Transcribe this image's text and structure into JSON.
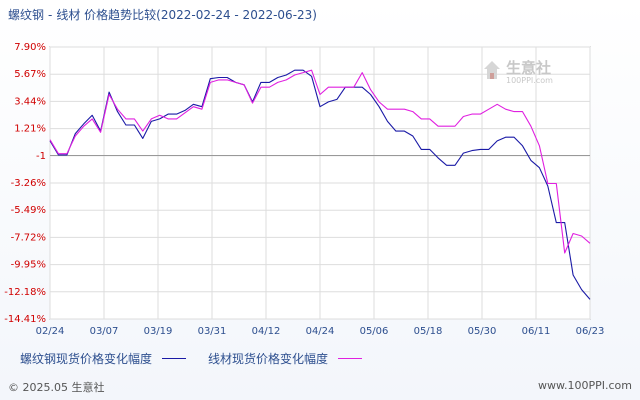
{
  "header": {
    "title_left": "螺纹钢",
    "title_sep": "-",
    "title_right": "线材  价格趋势比较(2022-02-24 - 2022-06-23)"
  },
  "legend": {
    "series1": "螺纹钢现货价格变化幅度",
    "series2": "线材现货价格变化幅度"
  },
  "footer": {
    "copyright": "© 2025.05 生意社",
    "url": "www.100PPI.com"
  },
  "watermark": {
    "name": "生意社",
    "url": "100PPI.com"
  },
  "colors": {
    "series1": "#1a1aa6",
    "series2": "#e020e0",
    "zero_line": "#999999",
    "grid": "#dddddd",
    "axis": "#888888",
    "ytick": "#d00000",
    "xtick": "#2d4f8f"
  },
  "chart_data": {
    "type": "line",
    "title": "螺纹钢 - 线材  价格趋势比较(2022-02-24 - 2022-06-23)",
    "xlabel": "",
    "ylabel": "",
    "ylim": [
      -14.41,
      7.9
    ],
    "yticks": [
      7.9,
      5.67,
      3.44,
      1.21,
      -1.02,
      -3.26,
      -5.49,
      -7.72,
      -9.95,
      -12.18,
      -14.41
    ],
    "ytick_labels": [
      "7.90%",
      "5.67%",
      "3.44%",
      "1.21%",
      "-1",
      "-3.26%",
      "-5.49%",
      "-7.72%",
      "-9.95%",
      "-12.18%",
      "-14.41%"
    ],
    "xticks": [
      "02/24",
      "03/07",
      "03/19",
      "03/31",
      "04/12",
      "04/24",
      "05/06",
      "05/18",
      "05/30",
      "06/11",
      "06/23"
    ],
    "zero_line": -1,
    "grid": true,
    "legend_position": "bottom",
    "x": [
      "02/24",
      "02/25",
      "02/27",
      "03/01",
      "03/03",
      "03/04",
      "03/05",
      "03/07",
      "03/08",
      "03/10",
      "03/12",
      "03/14",
      "03/16",
      "03/19",
      "03/21",
      "03/23",
      "03/25",
      "03/27",
      "03/29",
      "03/31",
      "04/02",
      "04/04",
      "04/06",
      "04/08",
      "04/10",
      "04/12",
      "04/14",
      "04/16",
      "04/18",
      "04/20",
      "04/22",
      "04/24",
      "04/26",
      "04/28",
      "04/30",
      "05/02",
      "05/04",
      "05/06",
      "05/08",
      "05/10",
      "05/12",
      "05/14",
      "05/16",
      "05/18",
      "05/20",
      "05/22",
      "05/24",
      "05/26",
      "05/28",
      "05/30",
      "06/01",
      "06/03",
      "06/05",
      "06/07",
      "06/09",
      "06/11",
      "06/13",
      "06/15",
      "06/16",
      "06/17",
      "06/18",
      "06/19",
      "06/20",
      "06/21",
      "06/23"
    ],
    "series": [
      {
        "name": "螺纹钢现货价格变化幅度",
        "values": [
          0.2,
          -0.95,
          -0.95,
          0.8,
          1.6,
          2.3,
          1.0,
          4.2,
          2.6,
          1.5,
          1.5,
          0.4,
          1.8,
          2.0,
          2.4,
          2.4,
          2.7,
          3.2,
          3.0,
          5.3,
          5.4,
          5.4,
          5.0,
          4.8,
          3.4,
          5.0,
          5.0,
          5.4,
          5.6,
          6.0,
          6.0,
          5.5,
          3.0,
          3.4,
          3.6,
          4.6,
          4.6,
          4.6,
          4.0,
          3.0,
          1.8,
          1.0,
          1.0,
          0.6,
          -0.5,
          -0.5,
          -1.2,
          -1.8,
          -1.8,
          -0.8,
          -0.6,
          -0.5,
          -0.5,
          0.2,
          0.5,
          0.5,
          -0.2,
          -1.4,
          -2.0,
          -3.5,
          -6.5,
          -6.5,
          -10.8,
          -12.0,
          -12.8
        ]
      },
      {
        "name": "线材现货价格变化幅度",
        "values": [
          0.3,
          -0.85,
          -0.85,
          0.6,
          1.4,
          2.0,
          0.9,
          4.0,
          2.8,
          2.0,
          2.0,
          1.0,
          2.0,
          2.3,
          2.0,
          2.0,
          2.5,
          3.0,
          2.8,
          5.0,
          5.2,
          5.2,
          5.0,
          4.8,
          3.3,
          4.6,
          4.6,
          5.0,
          5.2,
          5.6,
          5.8,
          6.0,
          4.0,
          4.6,
          4.6,
          4.6,
          4.6,
          5.8,
          4.4,
          3.4,
          2.8,
          2.8,
          2.8,
          2.6,
          2.0,
          2.0,
          1.4,
          1.4,
          1.4,
          2.2,
          2.4,
          2.4,
          2.8,
          3.2,
          2.8,
          2.6,
          2.6,
          1.4,
          -0.2,
          -3.3,
          -3.3,
          -9.0,
          -7.4,
          -7.6,
          -8.2
        ]
      }
    ]
  }
}
